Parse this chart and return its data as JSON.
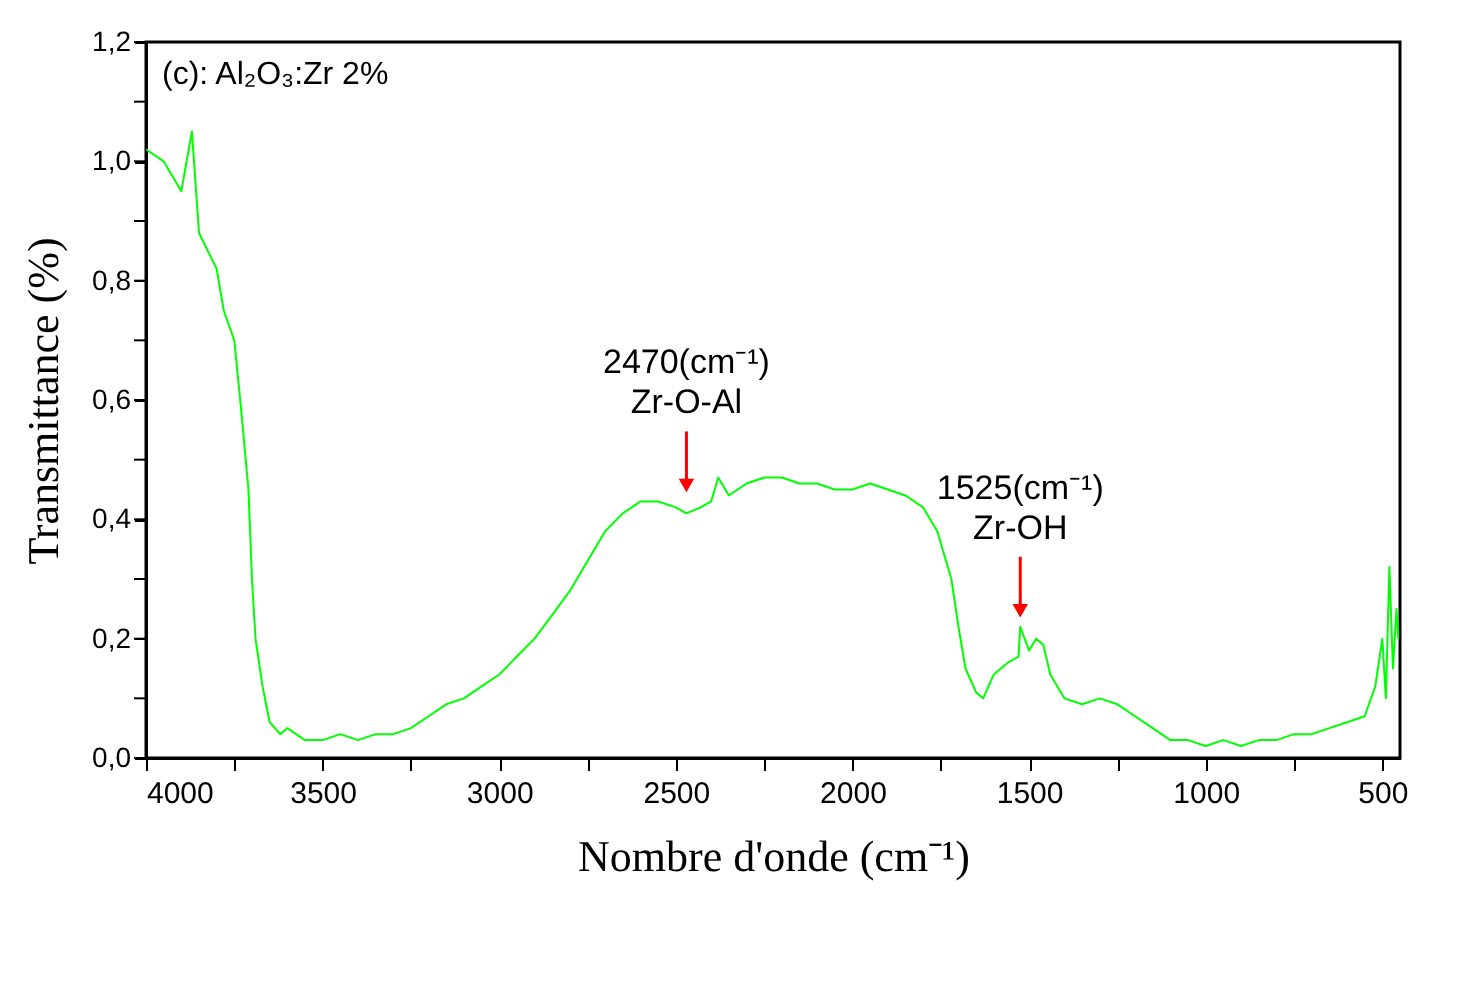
{
  "chart_data": {
    "type": "line",
    "title": "(c): Al₂O₃:Zr 2%",
    "xlabel": "Nombre d'onde (cm⁻¹)",
    "ylabel": "Transmittance (%)",
    "annotations": [
      {
        "text": "2470(cm⁻¹)\nZr-O-Al",
        "x": 2470,
        "y": 0.43
      },
      {
        "text": "1525(cm⁻¹)\nZr-OH",
        "x": 1525,
        "y": 0.22
      }
    ],
    "xlim": [
      4000,
      450
    ],
    "ylim": [
      0,
      1.2
    ],
    "xticks": [
      4000,
      {
        "value": 3750,
        "label": null
      },
      3500,
      {
        "value": 3250,
        "label": null
      },
      3000,
      {
        "value": 2750,
        "label": null
      },
      2500,
      {
        "value": 2250,
        "label": null
      },
      2000,
      {
        "value": 1750,
        "label": null
      },
      1500,
      {
        "value": 1250,
        "label": null
      },
      1000,
      {
        "value": 750,
        "label": null
      },
      500
    ],
    "yticks": [
      {
        "value": 0,
        "label": "0,0"
      },
      {
        "value": 0.1,
        "label": null
      },
      {
        "value": 0.2,
        "label": "0,2"
      },
      {
        "value": 0.3,
        "label": null
      },
      {
        "value": 0.4,
        "label": "0,4"
      },
      {
        "value": 0.5,
        "label": null
      },
      {
        "value": 0.6,
        "label": "0,6"
      },
      {
        "value": 0.7,
        "label": null
      },
      {
        "value": 0.8,
        "label": "0,8"
      },
      {
        "value": 0.9,
        "label": null
      },
      {
        "value": 1.0,
        "label": "1,0"
      },
      {
        "value": 1.1,
        "label": null
      },
      {
        "value": 1.2,
        "label": "1,2"
      }
    ],
    "grid": false,
    "marker": "none",
    "line_style": "solid",
    "x": [
      4000,
      3950,
      3900,
      3870,
      3850,
      3800,
      3780,
      3750,
      3730,
      3710,
      3700,
      3690,
      3670,
      3650,
      3620,
      3600,
      3550,
      3500,
      3450,
      3400,
      3350,
      3300,
      3250,
      3200,
      3150,
      3100,
      3050,
      3000,
      2950,
      2900,
      2850,
      2800,
      2750,
      2700,
      2650,
      2600,
      2550,
      2500,
      2470,
      2430,
      2400,
      2380,
      2350,
      2300,
      2250,
      2200,
      2150,
      2100,
      2050,
      2000,
      1950,
      1900,
      1850,
      1800,
      1760,
      1720,
      1700,
      1680,
      1650,
      1630,
      1600,
      1560,
      1530,
      1525,
      1500,
      1480,
      1460,
      1440,
      1420,
      1400,
      1350,
      1300,
      1250,
      1200,
      1150,
      1100,
      1050,
      1000,
      950,
      900,
      850,
      800,
      750,
      700,
      650,
      600,
      550,
      520,
      500,
      490,
      480,
      470,
      460,
      455
    ],
    "series": [
      {
        "color": "#00ff00",
        "values": [
          1.02,
          1.0,
          0.95,
          1.05,
          0.88,
          0.82,
          0.75,
          0.7,
          0.58,
          0.45,
          0.3,
          0.2,
          0.12,
          0.06,
          0.04,
          0.05,
          0.03,
          0.03,
          0.04,
          0.03,
          0.04,
          0.04,
          0.05,
          0.07,
          0.09,
          0.1,
          0.12,
          0.14,
          0.17,
          0.2,
          0.24,
          0.28,
          0.33,
          0.38,
          0.41,
          0.43,
          0.43,
          0.42,
          0.41,
          0.42,
          0.43,
          0.47,
          0.44,
          0.46,
          0.47,
          0.47,
          0.46,
          0.46,
          0.45,
          0.45,
          0.46,
          0.45,
          0.44,
          0.42,
          0.38,
          0.3,
          0.22,
          0.15,
          0.11,
          0.1,
          0.14,
          0.16,
          0.17,
          0.22,
          0.18,
          0.2,
          0.19,
          0.14,
          0.12,
          0.1,
          0.09,
          0.1,
          0.09,
          0.07,
          0.05,
          0.03,
          0.03,
          0.02,
          0.03,
          0.02,
          0.03,
          0.03,
          0.04,
          0.04,
          0.05,
          0.06,
          0.07,
          0.12,
          0.2,
          0.1,
          0.32,
          0.15,
          0.25,
          0.2
        ]
      }
    ]
  }
}
